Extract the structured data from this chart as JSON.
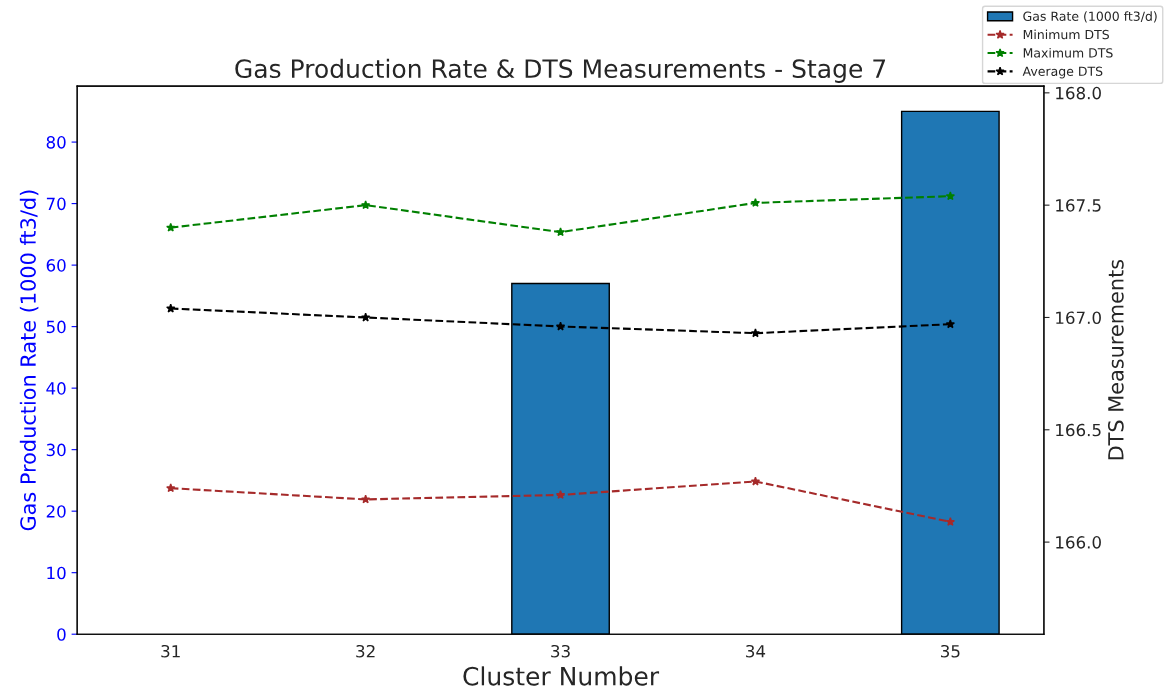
{
  "chart_data": {
    "type": "bar",
    "title": "Gas Production Rate & DTS Measurements - Stage 7",
    "xlabel": "Cluster Number",
    "ylabel": "Gas Production Rate (1000 ft3/d)",
    "y2label": "DTS Measurements",
    "categories": [
      "31",
      "32",
      "33",
      "34",
      "35"
    ],
    "series": [
      {
        "name": "Gas Rate (1000 ft3/d)",
        "color": "#1f77b4",
        "values": [
          null,
          null,
          57,
          null,
          85
        ]
      },
      {
        "name": "Minimum DTS",
        "type": "line",
        "axis": "y2",
        "color": "#a52a2a",
        "marker": "star",
        "line_style": "dashed",
        "values": [
          166.24,
          166.19,
          166.21,
          166.27,
          166.09
        ]
      },
      {
        "name": "Maximum DTS",
        "type": "line",
        "axis": "y2",
        "color": "#008000",
        "marker": "star",
        "line_style": "dashed",
        "values": [
          167.4,
          167.5,
          167.38,
          167.51,
          167.54
        ]
      },
      {
        "name": "Average DTS",
        "type": "line",
        "axis": "y2",
        "color": "#000000",
        "marker": "star",
        "line_style": "dashed",
        "values": [
          167.04,
          167.0,
          166.96,
          166.93,
          166.97
        ]
      }
    ],
    "ylim": [
      0,
      89.1
    ],
    "yticks": [
      0,
      10,
      20,
      30,
      40,
      50,
      60,
      70,
      80
    ],
    "y2lim": [
      165.59,
      168.03
    ],
    "y2ticks": [
      {
        "value": 166,
        "label": "166.0"
      },
      166.5,
      {
        "value": 167,
        "label": "167.0"
      },
      167.5,
      {
        "value": 168,
        "label": "168.0"
      }
    ],
    "legend": "top right",
    "grid": false
  }
}
